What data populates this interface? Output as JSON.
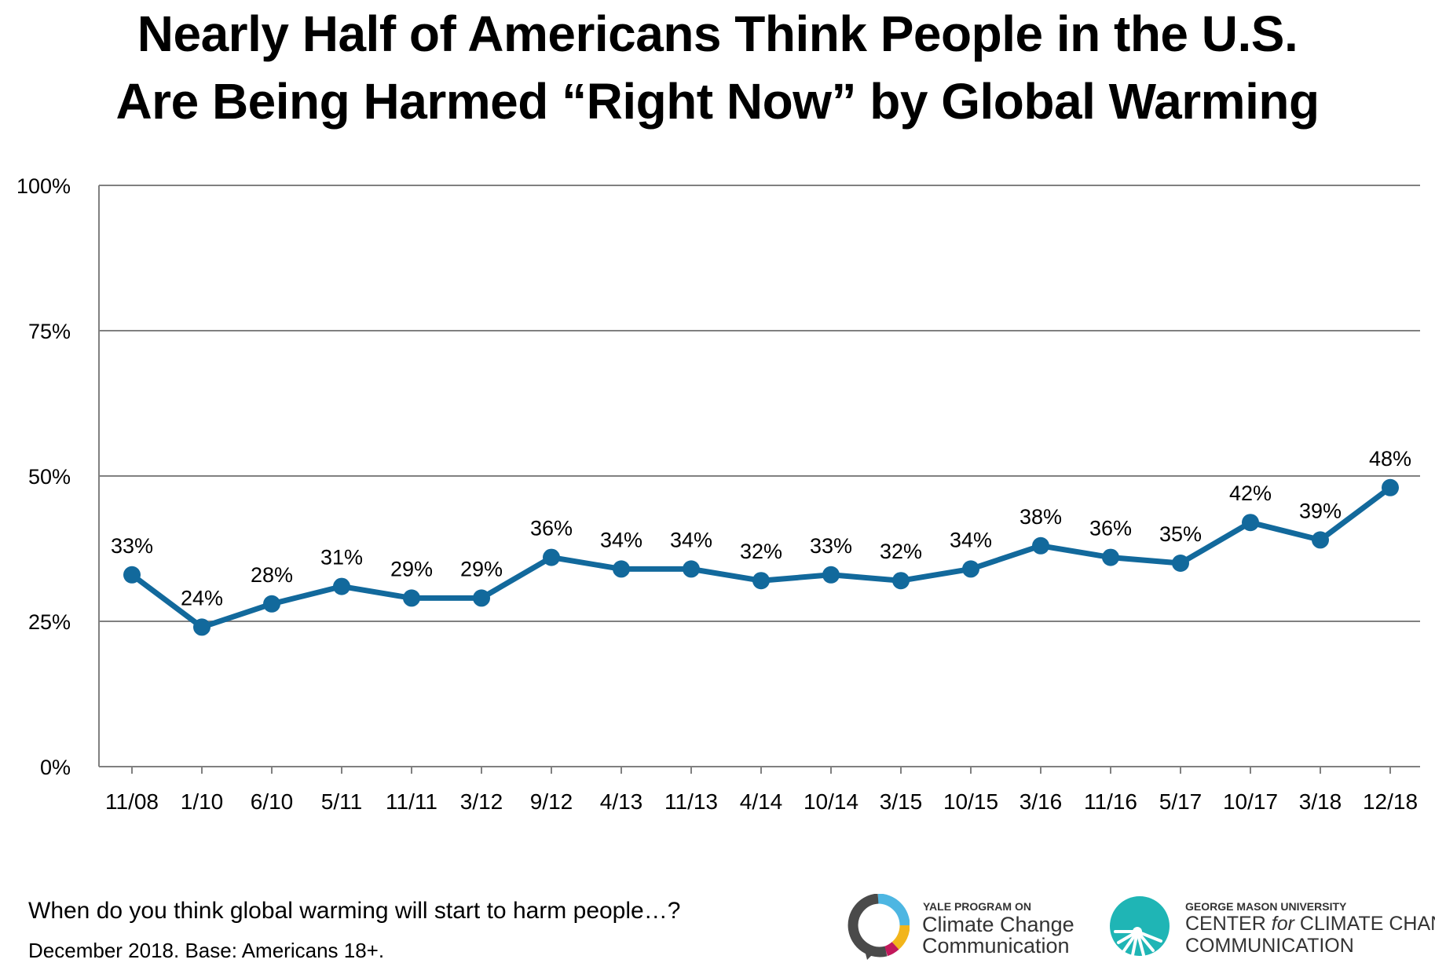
{
  "title_line1": "Nearly Half of Americans Think People in the U.S.",
  "title_line2": "Are Being Harmed “Right Now” by Global Warming",
  "chart_data": {
    "type": "line",
    "title": "Nearly Half of Americans Think People in the U.S. Are Being Harmed “Right Now” by Global Warming",
    "xlabel": "",
    "ylabel": "",
    "categories": [
      "11/08",
      "1/10",
      "6/10",
      "5/11",
      "11/11",
      "3/12",
      "9/12",
      "4/13",
      "11/13",
      "4/14",
      "10/14",
      "3/15",
      "10/15",
      "3/16",
      "11/16",
      "5/17",
      "10/17",
      "3/18",
      "12/18"
    ],
    "series": [
      {
        "values": [
          33,
          24,
          28,
          31,
          29,
          29,
          36,
          34,
          34,
          32,
          33,
          32,
          34,
          38,
          36,
          35,
          42,
          39,
          48
        ]
      }
    ],
    "data_labels": [
      "33%",
      "24%",
      "28%",
      "31%",
      "29%",
      "29%",
      "36%",
      "34%",
      "34%",
      "32%",
      "33%",
      "32%",
      "34%",
      "38%",
      "36%",
      "35%",
      "42%",
      "39%",
      "48%"
    ],
    "y_ticks": [
      0,
      25,
      50,
      75,
      100
    ],
    "y_tick_labels": [
      "0%",
      "25%",
      "50%",
      "75%",
      "100%"
    ],
    "ylim": [
      0,
      100
    ],
    "grid": true,
    "line_color": "#12699C"
  },
  "footer": {
    "question": "When do you think global warming will start to harm people…?",
    "base": "December 2018. Base: Americans 18+."
  },
  "logos": {
    "yale": {
      "line1": "YALE PROGRAM ON",
      "line2": "Climate Change",
      "line3": "Communication"
    },
    "gmu": {
      "line1": "GEORGE MASON UNIVERSITY",
      "line2_a": "CENTER",
      "line2_for": "for",
      "line2_b": "CLIMATE CHANGE",
      "line3": "COMMUNICATION"
    }
  }
}
